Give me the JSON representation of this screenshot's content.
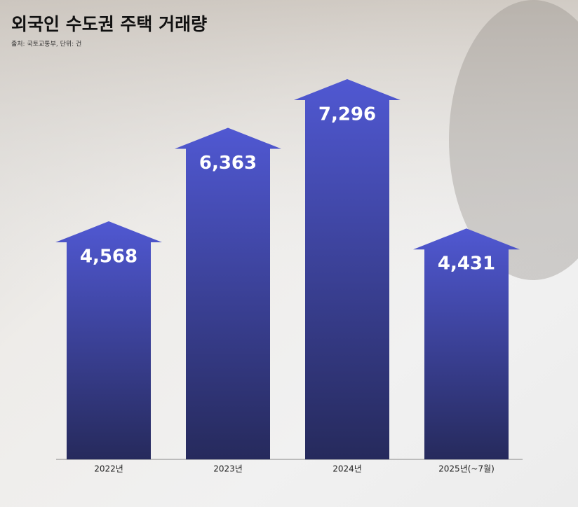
{
  "chart_data": {
    "type": "arrow-bar",
    "title": "외국인 수도권 주택 거래량",
    "subtitle": "출처: 국토교통부, 단위: 건",
    "categories": [
      "2022년",
      "2023년",
      "2024년",
      "2025년(~7월)"
    ],
    "values": [
      4568,
      6363,
      7296,
      4431
    ],
    "value_labels": [
      "4,568",
      "6,363",
      "7,296",
      "4,431"
    ],
    "color": [
      "#5058d2",
      "#262a5c"
    ]
  }
}
